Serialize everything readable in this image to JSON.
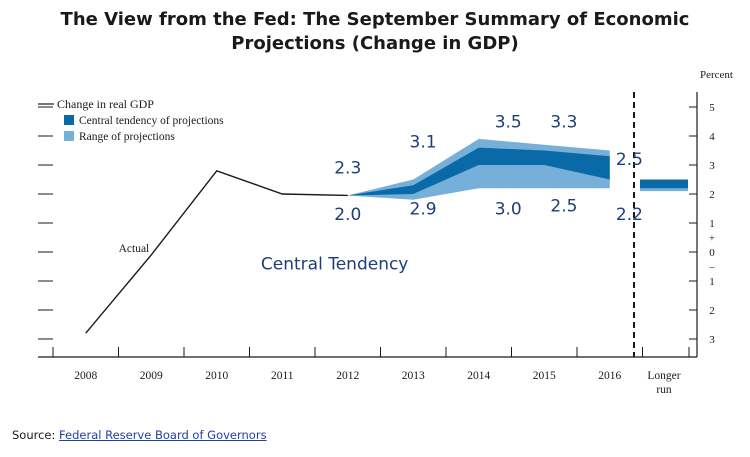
{
  "title_line1": "The View from the Fed: The September Summary of Economic",
  "title_line2": "Projections (Change in GDP)",
  "source_prefix": "Source:",
  "source_link": "Federal Reserve Board of Governors",
  "chart_data": {
    "type": "area",
    "ylabel": "Percent",
    "ylim": [
      -3.3,
      5.5
    ],
    "y_ticks": [
      {
        "v": 5,
        "label": "5"
      },
      {
        "v": 4,
        "label": "4"
      },
      {
        "v": 3,
        "label": "3"
      },
      {
        "v": 2,
        "label": "2"
      },
      {
        "v": 1,
        "label": "1"
      },
      {
        "v": 0,
        "label": "0"
      },
      {
        "v": -1,
        "label": "1"
      },
      {
        "v": -2,
        "label": "2"
      },
      {
        "v": -3,
        "label": "3"
      }
    ],
    "y_sign_plus": "+",
    "y_sign_minus": "–",
    "categories": [
      "2008",
      "2009",
      "2010",
      "2011",
      "2012",
      "2013",
      "2014",
      "2015",
      "2016"
    ],
    "longer_run_label": [
      "Longer",
      "run"
    ],
    "actual_label": "Actual",
    "legend": {
      "line": "Change in real GDP",
      "central": "Central tendency of projections",
      "range": "Range of projections",
      "placement": "top-left"
    },
    "colors": {
      "central": "#0a6aa8",
      "range": "#76b0d8",
      "line": "#1a1a1a",
      "annotation": "#1b3f7a"
    },
    "actual": {
      "x": [
        2008.5,
        2009.5,
        2010.5,
        2011.5,
        2012.5
      ],
      "y": [
        -2.8,
        -0.1,
        2.8,
        2.0,
        1.95
      ]
    },
    "range": {
      "x": [
        2012.5,
        2013.5,
        2014.5,
        2015.5,
        2016.5
      ],
      "high": [
        1.95,
        2.5,
        3.9,
        3.7,
        3.5
      ],
      "low": [
        1.95,
        1.8,
        2.2,
        2.2,
        2.2
      ]
    },
    "central": {
      "x": [
        2012.5,
        2013.5,
        2014.5,
        2015.5,
        2016.5
      ],
      "high": [
        1.95,
        2.3,
        3.6,
        3.5,
        3.3
      ],
      "low": [
        1.95,
        2.0,
        3.0,
        3.0,
        2.5
      ]
    },
    "longer_run": {
      "range": [
        2.1,
        2.5
      ],
      "central": [
        2.2,
        2.5
      ]
    },
    "annotations": [
      {
        "text": "2.3",
        "x": 2012.5,
        "y": 2.7
      },
      {
        "text": "2.0",
        "x": 2012.5,
        "y": 1.1
      },
      {
        "text": "3.1",
        "x": 2013.65,
        "y": 3.6
      },
      {
        "text": "2.9",
        "x": 2013.65,
        "y": 1.3
      },
      {
        "text": "3.5",
        "x": 2014.95,
        "y": 4.3
      },
      {
        "text": "3.0",
        "x": 2014.95,
        "y": 1.3
      },
      {
        "text": "3.3",
        "x": 2015.8,
        "y": 4.3
      },
      {
        "text": "2.5",
        "x": 2015.8,
        "y": 1.4
      },
      {
        "text": "2.5",
        "x": 2016.8,
        "y": 3.0
      },
      {
        "text": "2.2",
        "x": 2016.8,
        "y": 1.1
      }
    ],
    "region_label": "Central Tendency",
    "grid": false
  }
}
